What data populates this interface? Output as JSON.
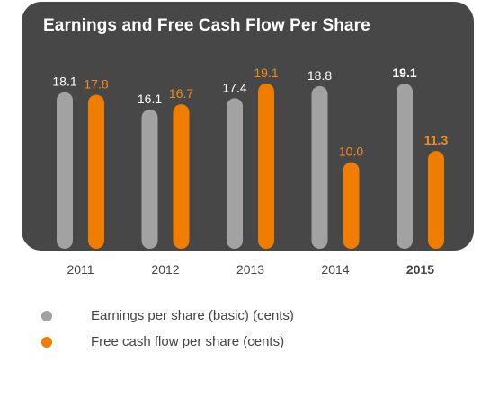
{
  "colors": {
    "panel": "#474747",
    "earnings": "#a2a2a2",
    "fcf": "#ef7d00",
    "label_earnings": "#ffffff",
    "label_fcf": "#f08c1c",
    "axis_text": "#444444"
  },
  "chart_data": {
    "type": "bar",
    "title": "Earnings and Free Cash Flow Per Share",
    "categories": [
      "2011",
      "2012",
      "2013",
      "2014",
      "2015"
    ],
    "highlight_category": "2015",
    "series": [
      {
        "name": "Earnings per share (basic) (cents)",
        "values": [
          18.1,
          16.1,
          17.4,
          18.8,
          19.1
        ]
      },
      {
        "name": "Free cash flow per share (cents)",
        "values": [
          17.8,
          16.7,
          19.1,
          10.0,
          11.3
        ]
      }
    ],
    "value_labels": [
      [
        "18.1",
        "16.1",
        "17.4",
        "18.8",
        "19.1"
      ],
      [
        "17.8",
        "16.7",
        "19.1",
        "10.0",
        "11.3"
      ]
    ],
    "ylim": [
      0,
      19.1
    ],
    "grid": false,
    "legend_position": "bottom-left"
  }
}
